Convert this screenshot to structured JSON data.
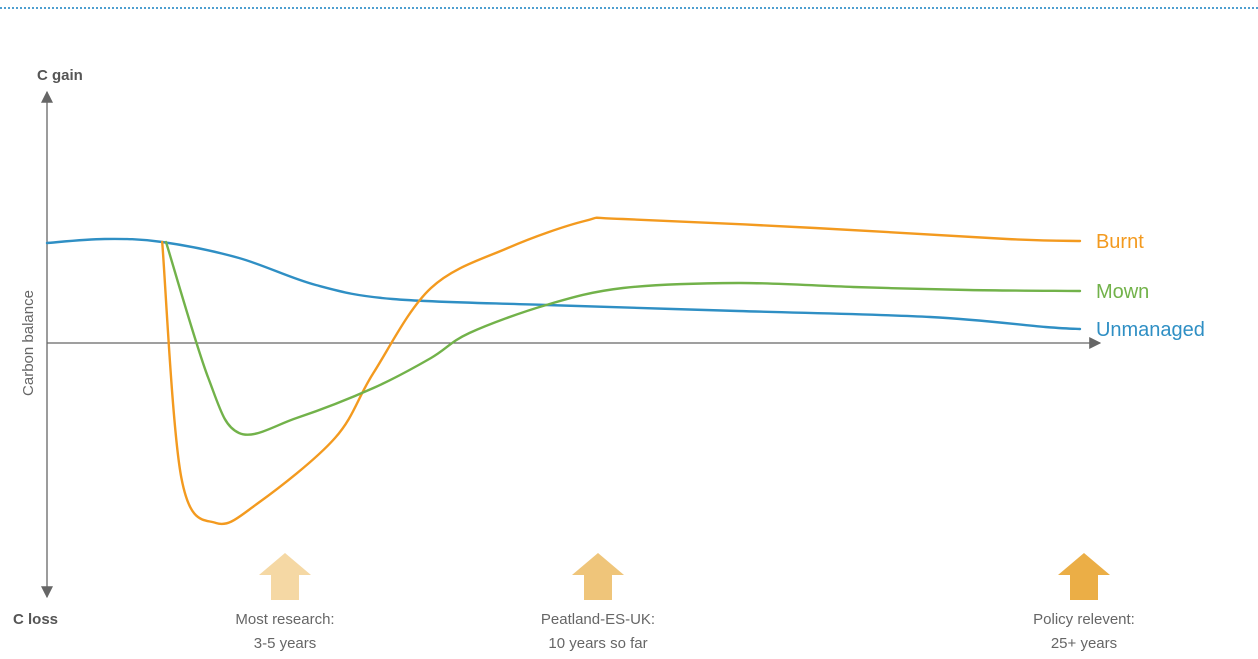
{
  "chart_data": {
    "type": "line",
    "title": "",
    "xlabel": "",
    "ylabel": "Carbon balance",
    "y_top_label": "C gain",
    "y_bottom_label": "C loss",
    "y_axis_ticks_shown": false,
    "x_axis_ticks_shown": false,
    "grid": false,
    "legend": "labels at right end of each line",
    "x_unit": "years",
    "series": [
      {
        "name": "Unmanaged",
        "color": "#2f8fc4",
        "points": [
          [
            0,
            1.0
          ],
          [
            1.5,
            1.04
          ],
          [
            3,
            1.01
          ],
          [
            5,
            0.85
          ],
          [
            7,
            0.58
          ],
          [
            9,
            0.44
          ],
          [
            13,
            0.38
          ],
          [
            18,
            0.32
          ],
          [
            23,
            0.26
          ],
          [
            26,
            0.16
          ],
          [
            26.9,
            0.14
          ]
        ]
      },
      {
        "name": "Burnt",
        "color": "#f39a1f",
        "points": [
          [
            3,
            1.01
          ],
          [
            3.5,
            -1.35
          ],
          [
            4.4,
            -1.8
          ],
          [
            5.5,
            -1.6
          ],
          [
            7.5,
            -0.95
          ],
          [
            8.5,
            -0.3
          ],
          [
            10,
            0.55
          ],
          [
            12,
            0.95
          ],
          [
            14,
            1.22
          ],
          [
            15,
            1.24
          ],
          [
            20,
            1.15
          ],
          [
            25,
            1.04
          ],
          [
            26.9,
            1.02
          ]
        ]
      },
      {
        "name": "Mown",
        "color": "#72b24a",
        "points": [
          [
            3.1,
            1.01
          ],
          [
            4.2,
            -0.35
          ],
          [
            5,
            -0.9
          ],
          [
            6.5,
            -0.75
          ],
          [
            8.5,
            -0.45
          ],
          [
            10,
            -0.15
          ],
          [
            11,
            0.1
          ],
          [
            13,
            0.38
          ],
          [
            15,
            0.55
          ],
          [
            18,
            0.6
          ],
          [
            21,
            0.56
          ],
          [
            24,
            0.53
          ],
          [
            26.9,
            0.52
          ]
        ]
      }
    ],
    "annotations": [
      {
        "id": "most-research",
        "line1": "Most research:",
        "line2": "3-5 years",
        "color": "#f5d8a4"
      },
      {
        "id": "peatland",
        "line1": "Peatland-ES-UK:",
        "line2": "10 years so far",
        "color": "#efc57a"
      },
      {
        "id": "policy",
        "line1": "Policy relevent:",
        "line2": "25+ years",
        "color": "#ebae46"
      }
    ],
    "axis_color": "#666666"
  }
}
